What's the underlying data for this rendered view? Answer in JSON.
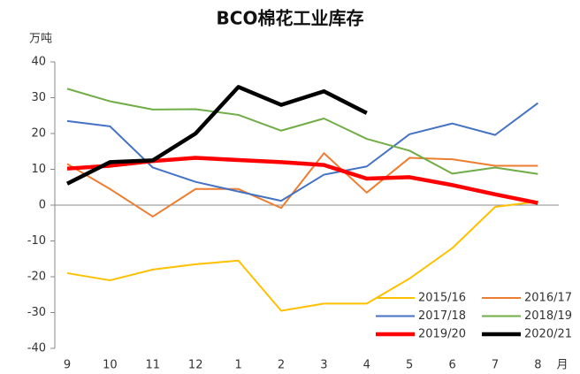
{
  "chart_data": {
    "type": "line",
    "title": "BCO棉花工业库存",
    "y_label": "万吨",
    "x_label": "月",
    "categories": [
      "9",
      "10",
      "11",
      "12",
      "1",
      "2",
      "3",
      "4",
      "5",
      "6",
      "7",
      "8"
    ],
    "ylim": [
      -40,
      40
    ],
    "yticks": [
      -40,
      -30,
      -20,
      -10,
      0,
      10,
      20,
      30,
      40
    ],
    "grid": false,
    "legend": "lower right",
    "series": [
      {
        "name": "2015/16",
        "color": "#FFC000",
        "width": 2,
        "values": [
          -19,
          -21,
          -18,
          -16.5,
          -15.5,
          -29.5,
          -27.5,
          -27.5,
          -20.5,
          -12,
          -0.5,
          1
        ]
      },
      {
        "name": "2016/17",
        "color": "#ED7D31",
        "width": 2,
        "values": [
          11.5,
          4.5,
          -3.2,
          4.5,
          4.5,
          -0.8,
          14.5,
          3.5,
          13.2,
          12.8,
          11,
          11
        ]
      },
      {
        "name": "2017/18",
        "color": "#4472C4",
        "width": 2,
        "values": [
          23.5,
          22,
          10.5,
          6.5,
          3.8,
          1.2,
          8.5,
          10.8,
          19.8,
          22.8,
          19.6,
          28.5
        ]
      },
      {
        "name": "2018/19",
        "color": "#70AD47",
        "width": 2,
        "values": [
          32.5,
          29,
          26.7,
          26.8,
          25.2,
          20.8,
          24.2,
          18.5,
          15.2,
          8.8,
          10.5,
          8.7
        ]
      },
      {
        "name": "2019/20",
        "color": "#FF0000",
        "width": 4.5,
        "values": [
          10.2,
          11,
          12.3,
          13.2,
          12.6,
          12,
          11.2,
          7.4,
          7.8,
          5.6,
          3,
          0.6
        ]
      },
      {
        "name": "2020/21",
        "color": "#000000",
        "width": 4.5,
        "values": [
          6,
          12,
          12.5,
          20,
          33,
          28,
          31.8,
          25.7,
          null,
          null,
          null,
          null
        ]
      }
    ]
  }
}
